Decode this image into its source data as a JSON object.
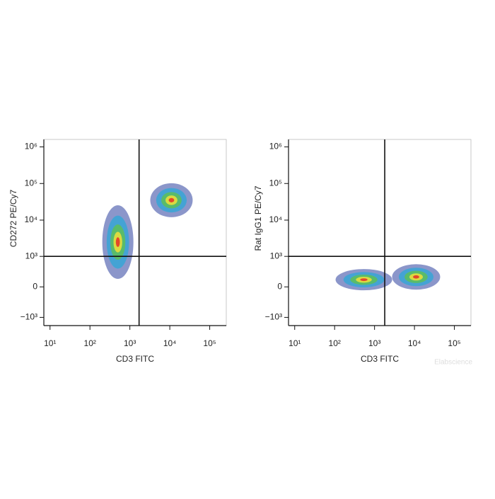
{
  "chart_data": [
    {
      "type": "scatter",
      "x_label": "CD3 FITC",
      "y_label": "CD272 PE/Cy7",
      "x_scale": "log",
      "y_scale": "biexponential",
      "xlim": [
        7,
        260000
      ],
      "ylim": [
        -1700,
        1600000
      ],
      "xticks": [
        {
          "value": 10,
          "label": "10¹"
        },
        {
          "value": 100,
          "label": "10²"
        },
        {
          "value": 1000,
          "label": "10³"
        },
        {
          "value": 10000,
          "label": "10⁴"
        },
        {
          "value": 100000,
          "label": "10⁵"
        }
      ],
      "yticks": [
        {
          "value": -1000,
          "label": "−10³"
        },
        0,
        {
          "value": 1000,
          "label": "10³"
        },
        {
          "value": 10000,
          "label": "10⁴"
        },
        {
          "value": 100000,
          "label": "10⁵"
        },
        {
          "value": 1000000,
          "label": "10⁶"
        }
      ],
      "gate": {
        "x": 1700,
        "y": 1000
      },
      "x": [
        500,
        11000
      ],
      "values": [
        2500,
        35000
      ],
      "density_colors": [
        "#2b3f9e",
        "#37a6d6",
        "#5dbf58",
        "#f0e03a",
        "#e52e27"
      ]
    },
    {
      "type": "scatter",
      "x_label": "CD3 FITC",
      "y_label": "Rat IgG1 PE/Cy7",
      "x_scale": "log",
      "y_scale": "biexponential",
      "xlim": [
        7,
        260000
      ],
      "ylim": [
        -1700,
        1600000
      ],
      "xticks": [
        {
          "value": 10,
          "label": "10¹"
        },
        {
          "value": 100,
          "label": "10²"
        },
        {
          "value": 1000,
          "label": "10³"
        },
        {
          "value": 10000,
          "label": "10⁴"
        },
        {
          "value": 100000,
          "label": "10⁵"
        }
      ],
      "yticks": [
        {
          "value": -1000,
          "label": "−10³"
        },
        0,
        {
          "value": 1000,
          "label": "10³"
        },
        {
          "value": 10000,
          "label": "10⁴"
        },
        {
          "value": 100000,
          "label": "10⁵"
        },
        {
          "value": 1000000,
          "label": "10⁶"
        }
      ],
      "gate": {
        "x": 1800,
        "y": 1000
      },
      "x": [
        540,
        11000
      ],
      "values": [
        140,
        200
      ],
      "density_colors": [
        "#2b3f9e",
        "#37a6d6",
        "#5dbf58",
        "#f0e03a",
        "#e52e27"
      ]
    }
  ],
  "watermark": "Elabscience"
}
